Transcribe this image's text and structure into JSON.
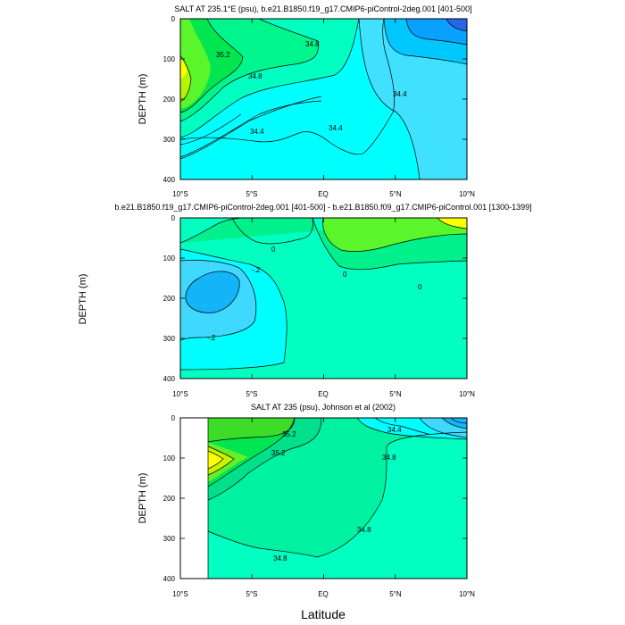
{
  "chart_data": [
    {
      "type": "contour",
      "title": "SALT AT 235.1°E (psu), b.e21.B1850.f19_g17.CMIP6-piControl-2deg.001 [401-500]",
      "ylabel": "DEPTH (m)",
      "xlabel": "",
      "x_ticks": [
        "10°S",
        "5°S",
        "EQ",
        "5°N",
        "10°N"
      ],
      "x_tick_values": [
        -10,
        -5,
        0,
        5,
        10
      ],
      "y_ticks": [
        "0",
        "100",
        "200",
        "300",
        "400"
      ],
      "y_tick_values": [
        0,
        100,
        200,
        300,
        400
      ],
      "xlim": [
        -10,
        10
      ],
      "ylim": [
        400,
        0
      ],
      "contour_labels": [
        {
          "text": "35.2",
          "x": -7.6,
          "y": 90
        },
        {
          "text": "34.8",
          "x": -1.2,
          "y": 40
        },
        {
          "text": "34.8",
          "x": -4.6,
          "y": 145
        },
        {
          "text": "34.4",
          "x": 5.8,
          "y": 140
        },
        {
          "text": "34.4",
          "x": -4.8,
          "y": 292
        },
        {
          "text": "34.4",
          "x": 0.8,
          "y": 290
        }
      ]
    },
    {
      "type": "contour",
      "title": "b.e21.B1850.f19_g17.CMIP6-piControl-2deg.001 [401-500] - b.e21.B1850.f09_g17.CMIP6-piControl.001 [1300-1399]",
      "ylabel": "DEPTH (m)",
      "xlabel": "",
      "x_ticks": [
        "10°S",
        "5°S",
        "EQ",
        "5°N",
        "10°N"
      ],
      "x_tick_values": [
        -10,
        -5,
        0,
        5,
        10
      ],
      "y_ticks": [
        "0",
        "100",
        "200",
        "300",
        "400"
      ],
      "y_tick_values": [
        0,
        100,
        200,
        300,
        400
      ],
      "xlim": [
        -10,
        10
      ],
      "ylim": [
        400,
        0
      ],
      "contour_labels": [
        {
          "text": "0",
          "x": -3.8,
          "y": 60
        },
        {
          "text": "-.2",
          "x": -4.9,
          "y": 128
        },
        {
          "text": "0",
          "x": 1.5,
          "y": 150
        },
        {
          "text": "0",
          "x": 6.8,
          "y": 170
        },
        {
          "text": "-.2",
          "x": -7.9,
          "y": 290
        }
      ]
    },
    {
      "type": "contour",
      "title": "SALT AT 235 (psu), Johnson et al (2002)",
      "ylabel": "DEPTH (m)",
      "xlabel": "Latitude",
      "x_ticks": [
        "10°S",
        "5°S",
        "EQ",
        "5°N",
        "10°N"
      ],
      "x_tick_values": [
        -10,
        -5,
        0,
        5,
        10
      ],
      "y_ticks": [
        "0",
        "100",
        "200",
        "300",
        "400"
      ],
      "y_tick_values": [
        0,
        100,
        200,
        300,
        400
      ],
      "xlim": [
        -10,
        10
      ],
      "ylim": [
        400,
        0
      ],
      "contour_labels": [
        {
          "text": "35.2",
          "x": -3.4,
          "y": 35
        },
        {
          "text": "35.2",
          "x": -3.6,
          "y": 85
        },
        {
          "text": "34.4",
          "x": 6.5,
          "y": 30
        },
        {
          "text": "34.8",
          "x": 4.6,
          "y": 100
        },
        {
          "text": "34.8",
          "x": 2.8,
          "y": 265
        },
        {
          "text": "34.8",
          "x": -2.6,
          "y": 352
        }
      ]
    }
  ]
}
